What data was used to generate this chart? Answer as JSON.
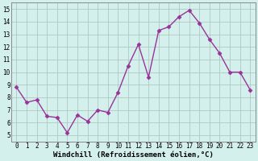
{
  "x": [
    0,
    1,
    2,
    3,
    4,
    5,
    6,
    7,
    8,
    9,
    10,
    11,
    12,
    13,
    14,
    15,
    16,
    17,
    18,
    19,
    20,
    21,
    22,
    23
  ],
  "y": [
    8.8,
    7.6,
    7.8,
    6.5,
    6.4,
    5.2,
    6.6,
    6.1,
    7.0,
    6.8,
    8.4,
    10.5,
    12.2,
    9.6,
    13.3,
    13.6,
    14.4,
    14.9,
    13.9,
    12.6,
    11.5,
    10.0,
    10.0,
    8.6
  ],
  "line_color": "#993399",
  "marker": "D",
  "markersize": 2.5,
  "linewidth": 1.0,
  "xlim": [
    -0.5,
    23.5
  ],
  "ylim": [
    4.5,
    15.5
  ],
  "yticks": [
    5,
    6,
    7,
    8,
    9,
    10,
    11,
    12,
    13,
    14,
    15
  ],
  "xticks": [
    0,
    1,
    2,
    3,
    4,
    5,
    6,
    7,
    8,
    9,
    10,
    11,
    12,
    13,
    14,
    15,
    16,
    17,
    18,
    19,
    20,
    21,
    22,
    23
  ],
  "xlabel": "Windchill (Refroidissement éolien,°C)",
  "bg_color": "#d4f0ec",
  "grid_color": "#b0c8c4",
  "tick_fontsize": 5.5,
  "label_fontsize": 6.5
}
